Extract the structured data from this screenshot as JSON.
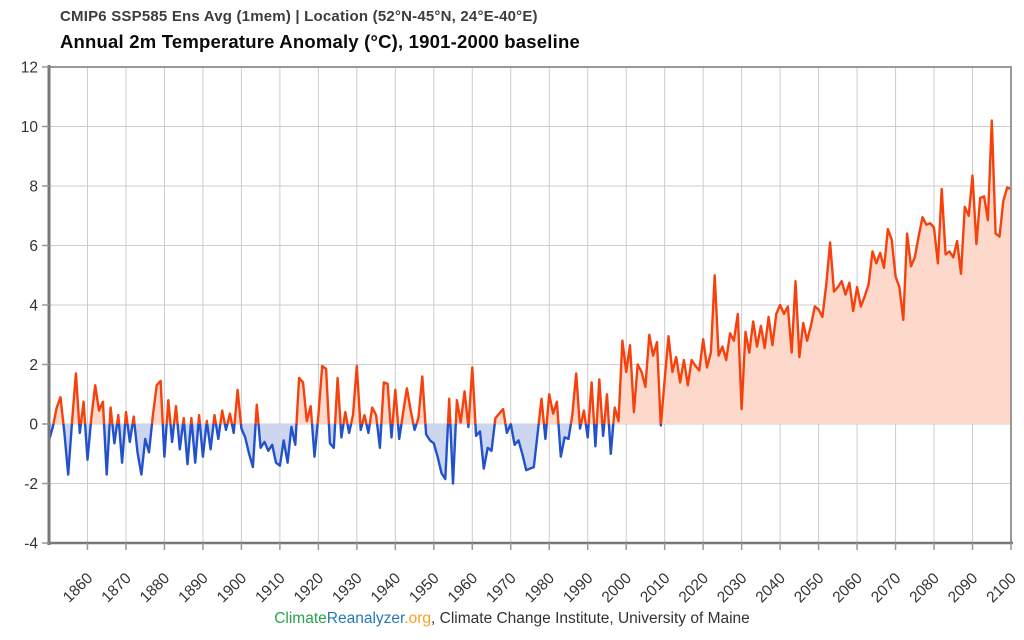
{
  "header": {
    "subtitle": "CMIP6 SSP585 Ens Avg (1mem) | Location (52°N-45°N, 24°E-40°E)",
    "title": "Annual 2m Temperature Anomaly (°C), 1901-2000 baseline"
  },
  "footer": {
    "brand_climate": "Climate",
    "brand_reanalyzer": "Reanalyzer",
    "brand_org": ".org",
    "credit": ", Climate Change Institute, University of Maine"
  },
  "chart_data": {
    "type": "line",
    "title": "Annual 2m Temperature Anomaly (°C), 1901-2000 baseline",
    "subtitle": "CMIP6 SSP585 Ens Avg (1mem) | Location (52°N-45°N, 24°E-40°E)",
    "xlabel": "",
    "ylabel": "",
    "xlim": [
      1850,
      2100
    ],
    "ylim": [
      -4,
      12
    ],
    "baseline": 0,
    "grid": true,
    "legend": "none",
    "x_ticks": [
      1860,
      1870,
      1880,
      1890,
      1900,
      1910,
      1920,
      1930,
      1940,
      1950,
      1960,
      1970,
      1980,
      1990,
      2000,
      2010,
      2020,
      2030,
      2040,
      2050,
      2060,
      2070,
      2080,
      2090,
      2100
    ],
    "y_ticks": [
      -4,
      -2,
      0,
      2,
      4,
      6,
      8,
      10,
      12
    ],
    "colors": {
      "line_positive": "#f8400c",
      "line_negative": "#2251cc",
      "fill_positive": "#fcd9cb",
      "fill_negative": "#ccd6ef",
      "grid": "#cccccc",
      "border": "#999999",
      "spine": "#777777",
      "tick_label": "#333333"
    },
    "series": [
      {
        "name": "Annual 2m Temperature Anomaly (°C)",
        "start_year": 1850,
        "end_year": 2100,
        "values": [
          -0.55,
          -0.1,
          0.55,
          0.9,
          -0.3,
          -1.7,
          0.1,
          1.7,
          -0.3,
          0.75,
          -1.2,
          0.2,
          1.3,
          0.45,
          0.75,
          -1.7,
          0.55,
          -0.65,
          0.3,
          -1.3,
          0.4,
          -0.6,
          0.25,
          -0.95,
          -1.7,
          -0.5,
          -0.95,
          0.3,
          1.3,
          1.45,
          -1.1,
          0.8,
          -0.6,
          0.6,
          -0.85,
          0.2,
          -1.35,
          0.2,
          -1.3,
          0.3,
          -1.1,
          0.1,
          -0.85,
          0.3,
          -0.5,
          0.45,
          -0.2,
          0.35,
          -0.3,
          1.15,
          -0.15,
          -0.45,
          -1.0,
          -1.45,
          0.65,
          -0.8,
          -0.6,
          -0.9,
          -0.7,
          -1.3,
          -1.4,
          -0.55,
          -1.3,
          -0.1,
          -0.7,
          1.55,
          1.4,
          0.1,
          0.6,
          -1.1,
          0.3,
          1.95,
          1.85,
          -0.65,
          -0.8,
          1.55,
          -0.45,
          0.4,
          -0.3,
          0.3,
          1.95,
          -0.2,
          0.3,
          -0.3,
          0.55,
          0.3,
          -0.8,
          1.4,
          1.35,
          -0.45,
          1.15,
          -0.5,
          0.35,
          1.2,
          0.45,
          -0.2,
          0.2,
          1.6,
          -0.35,
          -0.55,
          -0.65,
          -1.1,
          -1.65,
          -1.85,
          0.85,
          -2.0,
          0.8,
          0.05,
          1.1,
          -0.1,
          1.9,
          -0.4,
          -0.25,
          -1.5,
          -0.8,
          -0.9,
          0.2,
          0.35,
          0.5,
          -0.3,
          0.0,
          -0.7,
          -0.55,
          -1.0,
          -1.55,
          -1.5,
          -1.45,
          -0.3,
          0.85,
          -0.5,
          1.0,
          0.35,
          0.75,
          -1.1,
          -0.45,
          -0.5,
          0.3,
          1.7,
          -0.15,
          0.45,
          -0.45,
          1.4,
          -0.75,
          1.5,
          -0.4,
          1.0,
          -1.0,
          0.55,
          0.1,
          2.8,
          1.75,
          2.65,
          0.4,
          2.0,
          1.75,
          1.25,
          3.0,
          2.3,
          2.75,
          -0.05,
          1.5,
          2.95,
          1.75,
          2.25,
          1.4,
          2.15,
          1.3,
          2.15,
          1.95,
          1.8,
          2.85,
          1.9,
          2.4,
          5.0,
          2.3,
          2.6,
          2.15,
          3.05,
          2.8,
          3.7,
          0.5,
          3.1,
          2.4,
          3.45,
          2.6,
          3.3,
          2.55,
          3.6,
          2.65,
          3.7,
          4.0,
          3.7,
          3.95,
          2.4,
          4.8,
          2.25,
          3.4,
          2.8,
          3.3,
          3.95,
          3.85,
          3.6,
          4.7,
          6.1,
          4.45,
          4.6,
          4.8,
          4.35,
          4.75,
          3.8,
          4.6,
          3.95,
          4.3,
          4.7,
          5.8,
          5.4,
          5.75,
          5.25,
          6.55,
          6.2,
          4.95,
          4.6,
          3.5,
          6.4,
          5.3,
          5.6,
          6.3,
          6.95,
          6.7,
          6.75,
          6.6,
          5.4,
          7.9,
          5.7,
          5.8,
          5.6,
          6.15,
          5.05,
          7.3,
          7.0,
          8.35,
          6.05,
          7.6,
          7.65,
          6.85,
          10.2,
          6.4,
          6.3,
          7.5,
          7.95,
          7.9
        ]
      }
    ]
  }
}
